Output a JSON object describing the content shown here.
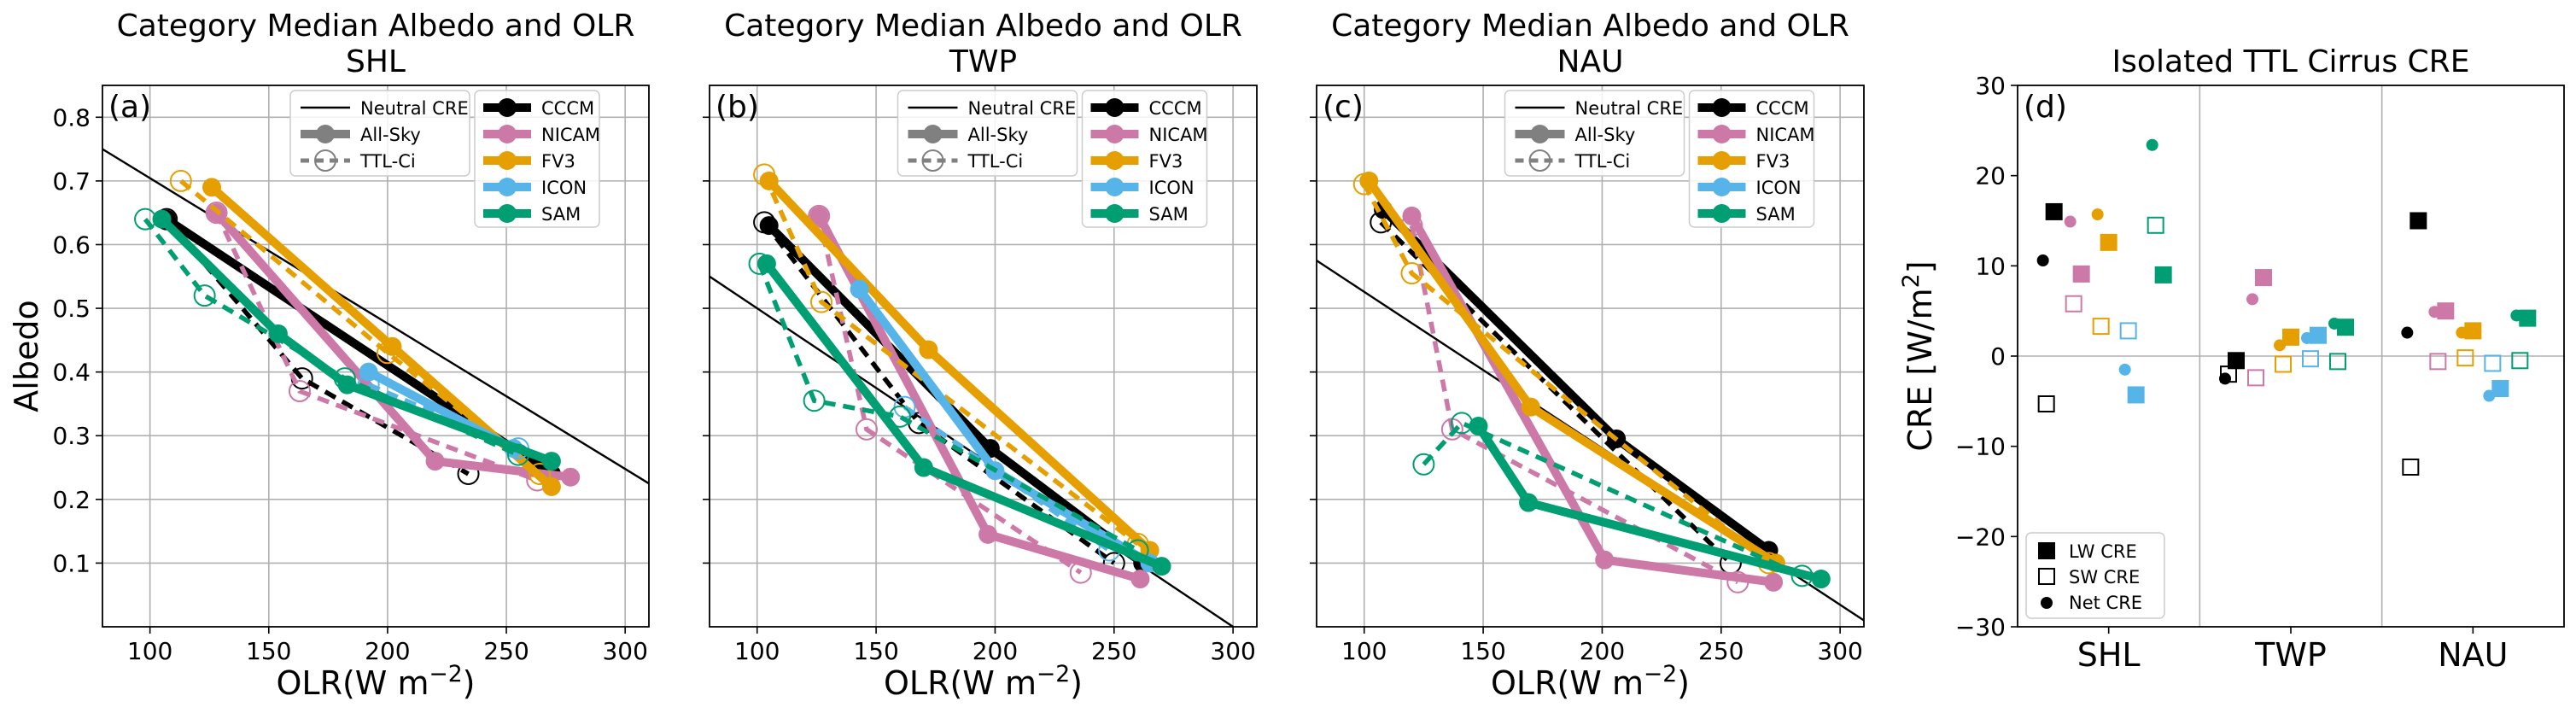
{
  "chart_data": [
    {
      "type": "line",
      "panel_label": "(a)",
      "title": "Category Median Albedo and OLR",
      "subtitle": "SHL",
      "xlabel": "OLR(W m⁻²)",
      "ylabel": "Albedo",
      "xlim": [
        80,
        310
      ],
      "ylim": [
        0.0,
        0.85
      ],
      "xticks": [
        "100",
        "150",
        "200",
        "250",
        "300"
      ],
      "yticks": [
        "0.1",
        "0.2",
        "0.3",
        "0.4",
        "0.5",
        "0.6",
        "0.7",
        "0.8"
      ],
      "grid": true,
      "legend_style": [
        "Neutral CRE",
        "All-Sky",
        "TTL-Ci"
      ],
      "legend_models": [
        "CCCM",
        "NICAM",
        "FV3",
        "ICON",
        "SAM"
      ],
      "legend_placement": "top-center",
      "neutral_line": {
        "x": [
          80,
          310
        ],
        "y": [
          0.75,
          0.225
        ]
      },
      "series": [
        {
          "name": "CCCM",
          "color": "#000000",
          "allsky": {
            "x": [
              107,
              269
            ],
            "y": [
              0.64,
              0.24
            ]
          },
          "ttlci": {
            "x": [
              107,
              164,
              234
            ],
            "y": [
              0.64,
              0.39,
              0.24
            ]
          }
        },
        {
          "name": "NICAM",
          "color": "#cc79a7",
          "allsky": {
            "x": [
              128,
              220,
              277
            ],
            "y": [
              0.65,
              0.26,
              0.235
            ]
          },
          "ttlci": {
            "x": [
              128,
              163,
              263
            ],
            "y": [
              0.65,
              0.37,
              0.23
            ]
          }
        },
        {
          "name": "FV3",
          "color": "#e69f00",
          "allsky": {
            "x": [
              126,
              202,
              269
            ],
            "y": [
              0.69,
              0.44,
              0.22
            ]
          },
          "ttlci": {
            "x": [
              113,
              200,
              264
            ],
            "y": [
              0.7,
              0.43,
              0.24
            ]
          }
        },
        {
          "name": "ICON",
          "color": "#56b4e9",
          "allsky": {
            "x": [
              192,
              253
            ],
            "y": [
              0.4,
              0.28
            ]
          },
          "ttlci": {
            "x": [
              192,
              255
            ],
            "y": [
              0.38,
              0.28
            ]
          }
        },
        {
          "name": "SAM",
          "color": "#009e73",
          "allsky": {
            "x": [
              105,
              154,
              183,
              269
            ],
            "y": [
              0.64,
              0.46,
              0.38,
              0.26
            ]
          },
          "ttlci": {
            "x": [
              98,
              123,
              182,
              255
            ],
            "y": [
              0.64,
              0.52,
              0.39,
              0.27
            ]
          }
        }
      ]
    },
    {
      "type": "line",
      "panel_label": "(b)",
      "title": "Category Median Albedo and OLR",
      "subtitle": "TWP",
      "xlabel": "OLR(W m⁻²)",
      "ylabel": "",
      "xlim": [
        80,
        310
      ],
      "ylim": [
        0.0,
        0.85
      ],
      "xticks": [
        "100",
        "150",
        "200",
        "250",
        "300"
      ],
      "yticks": [],
      "grid": true,
      "legend_style": [
        "Neutral CRE",
        "All-Sky",
        "TTL-Ci"
      ],
      "legend_models": [
        "CCCM",
        "NICAM",
        "FV3",
        "ICON",
        "SAM"
      ],
      "legend_placement": "top-center",
      "neutral_line": {
        "x": [
          80,
          300
        ],
        "y": [
          0.55,
          0.0
        ]
      },
      "series": [
        {
          "name": "CCCM",
          "color": "#000000",
          "allsky": {
            "x": [
              105,
              198,
              262
            ],
            "y": [
              0.63,
              0.28,
              0.1
            ]
          },
          "ttlci": {
            "x": [
              103,
              168,
              250
            ],
            "y": [
              0.635,
              0.32,
              0.1
            ]
          }
        },
        {
          "name": "NICAM",
          "color": "#cc79a7",
          "allsky": {
            "x": [
              126,
              197,
              261
            ],
            "y": [
              0.645,
              0.145,
              0.075
            ]
          },
          "ttlci": {
            "x": [
              126,
              146,
              236
            ],
            "y": [
              0.645,
              0.31,
              0.085
            ]
          }
        },
        {
          "name": "FV3",
          "color": "#e69f00",
          "allsky": {
            "x": [
              105,
              172,
              265
            ],
            "y": [
              0.7,
              0.435,
              0.12
            ]
          },
          "ttlci": {
            "x": [
              103,
              127,
              260
            ],
            "y": [
              0.71,
              0.51,
              0.13
            ]
          }
        },
        {
          "name": "ICON",
          "color": "#56b4e9",
          "allsky": {
            "x": [
              143,
              200,
              265
            ],
            "y": [
              0.53,
              0.245,
              0.1
            ]
          },
          "ttlci": {
            "x": [
              162,
              248
            ],
            "y": [
              0.345,
              0.12
            ]
          }
        },
        {
          "name": "SAM",
          "color": "#009e73",
          "allsky": {
            "x": [
              104,
              170,
              270
            ],
            "y": [
              0.57,
              0.25,
              0.095
            ]
          },
          "ttlci": {
            "x": [
              101,
              124,
              160,
              260
            ],
            "y": [
              0.57,
              0.355,
              0.33,
              0.12
            ]
          }
        }
      ]
    },
    {
      "type": "line",
      "panel_label": "(c)",
      "title": "Category Median Albedo and OLR",
      "subtitle": "NAU",
      "xlabel": "OLR(W m⁻²)",
      "ylabel": "",
      "xlim": [
        80,
        310
      ],
      "ylim": [
        0.0,
        0.85
      ],
      "xticks": [
        "100",
        "150",
        "200",
        "250",
        "300"
      ],
      "yticks": [],
      "grid": true,
      "legend_style": [
        "Neutral CRE",
        "All-Sky",
        "TTL-Ci"
      ],
      "legend_models": [
        "CCCM",
        "NICAM",
        "FV3",
        "ICON",
        "SAM"
      ],
      "legend_placement": "top-center",
      "neutral_line": {
        "x": [
          80,
          310
        ],
        "y": [
          0.575,
          0.01
        ]
      },
      "series": [
        {
          "name": "CCCM",
          "color": "#000000",
          "allsky": {
            "x": [
              108,
              206,
              270
            ],
            "y": [
              0.655,
              0.295,
              0.12
            ]
          },
          "ttlci": {
            "x": [
              107,
              254
            ],
            "y": [
              0.635,
              0.1
            ]
          }
        },
        {
          "name": "NICAM",
          "color": "#cc79a7",
          "allsky": {
            "x": [
              120,
              201,
              272
            ],
            "y": [
              0.645,
              0.105,
              0.07
            ]
          },
          "ttlci": {
            "x": [
              120,
              137,
              257
            ],
            "y": [
              0.63,
              0.31,
              0.07
            ]
          }
        },
        {
          "name": "FV3",
          "color": "#e69f00",
          "allsky": {
            "x": [
              102,
              170,
              273
            ],
            "y": [
              0.7,
              0.345,
              0.1
            ]
          },
          "ttlci": {
            "x": [
              100,
              120,
              270
            ],
            "y": [
              0.695,
              0.555,
              0.1
            ]
          }
        },
        {
          "name": "SAM",
          "color": "#009e73",
          "allsky": {
            "x": [
              148,
              169,
              292
            ],
            "y": [
              0.315,
              0.195,
              0.075
            ]
          },
          "ttlci": {
            "x": [
              125,
              141,
              284
            ],
            "y": [
              0.255,
              0.32,
              0.08
            ]
          }
        }
      ]
    },
    {
      "type": "scatter",
      "panel_label": "(d)",
      "title": "Isolated TTL Cirrus CRE",
      "xlabel": "",
      "ylabel": "CRE [W/m²]",
      "ylim": [
        -30,
        30
      ],
      "yticks": [
        "−30",
        "−20",
        "−10",
        "0",
        "10",
        "20",
        "30"
      ],
      "categories": [
        "SHL",
        "TWP",
        "NAU"
      ],
      "legend": [
        "LW CRE",
        "SW CRE",
        "Net CRE"
      ],
      "legend_placement": "lower-left",
      "series": [
        {
          "name": "CCCM",
          "color": "#000000",
          "lw": [
            16,
            -0.5,
            15
          ],
          "sw": [
            -5.3,
            -2,
            -12.3
          ],
          "net": [
            10.6,
            -2.5,
            2.6
          ]
        },
        {
          "name": "NICAM",
          "color": "#cc79a7",
          "lw": [
            9.1,
            8.7,
            5
          ],
          "sw": [
            5.8,
            -2.4,
            -0.6
          ],
          "net": [
            14.9,
            6.3,
            4.9
          ]
        },
        {
          "name": "FV3",
          "color": "#e69f00",
          "lw": [
            12.6,
            2.1,
            2.8
          ],
          "sw": [
            3.3,
            -0.9,
            -0.2
          ],
          "net": [
            15.7,
            1.2,
            2.6
          ]
        },
        {
          "name": "ICON",
          "color": "#56b4e9",
          "lw": [
            -4.3,
            2.3,
            -3.6
          ],
          "sw": [
            2.8,
            -0.3,
            -0.8
          ],
          "net": [
            -1.5,
            2,
            -4.4
          ]
        },
        {
          "name": "SAM",
          "color": "#009e73",
          "lw": [
            9,
            3.2,
            4.2
          ],
          "sw": [
            14.5,
            -0.6,
            -0.5
          ],
          "net": [
            23.4,
            3.6,
            4.5
          ]
        }
      ]
    }
  ]
}
